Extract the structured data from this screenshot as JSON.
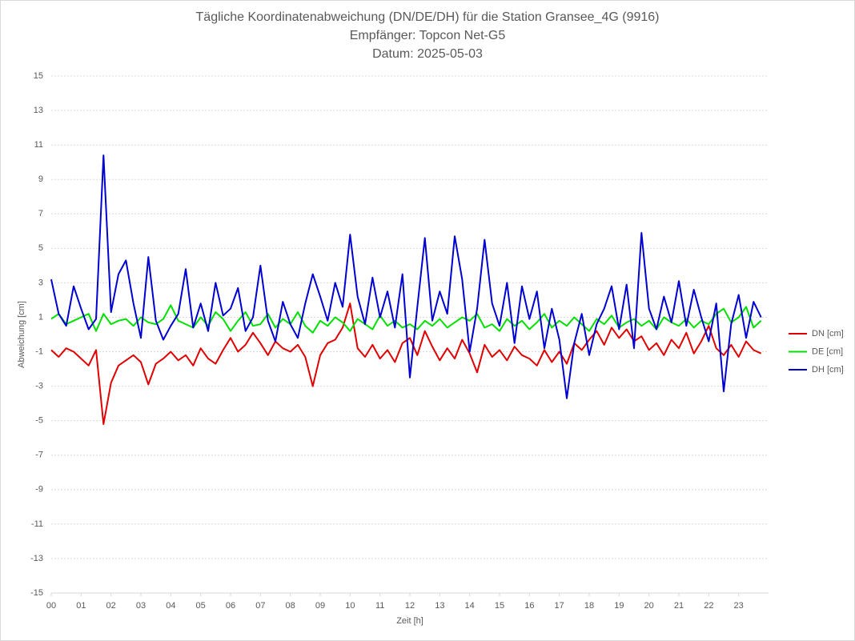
{
  "chart_data": {
    "type": "line",
    "title": "Tägliche Koordinatenabweichung (DN/DE/DH) für die Station Gransee_4G (9916)",
    "subtitle": "Empfänger: Topcon Net-G5",
    "date": "Datum: 2025-05-03",
    "x_label": "Zeit [h]",
    "y_label": "Abweichung [cm]",
    "xlim": [
      0,
      24
    ],
    "xticks": [
      {
        "value": 0,
        "label": "00"
      },
      {
        "value": 1,
        "label": "01"
      },
      {
        "value": 2,
        "label": "02"
      },
      {
        "value": 3,
        "label": "03"
      },
      {
        "value": 4,
        "label": "04"
      },
      {
        "value": 5,
        "label": "05"
      },
      {
        "value": 6,
        "label": "06"
      },
      {
        "value": 7,
        "label": "07"
      },
      {
        "value": 8,
        "label": "08"
      },
      {
        "value": 9,
        "label": "09"
      },
      10,
      11,
      12,
      13,
      14,
      15,
      16,
      17,
      18,
      19,
      20,
      21,
      22,
      23
    ],
    "ylim": [
      -15,
      15
    ],
    "yticks": [
      -15,
      -13,
      -11,
      -9,
      -7,
      -5,
      -3,
      -1,
      1,
      3,
      5,
      7,
      9,
      11,
      13,
      15
    ],
    "grid": true,
    "legend": "right",
    "x": [
      0,
      0.25,
      0.5,
      0.75,
      1,
      1.25,
      1.5,
      1.75,
      2,
      2.25,
      2.5,
      2.75,
      3,
      3.25,
      3.5,
      3.75,
      4,
      4.25,
      4.5,
      4.75,
      5,
      5.25,
      5.5,
      5.75,
      6,
      6.25,
      6.5,
      6.75,
      7,
      7.25,
      7.5,
      7.75,
      8,
      8.25,
      8.5,
      8.75,
      9,
      9.25,
      9.5,
      9.75,
      10,
      10.25,
      10.5,
      10.75,
      11,
      11.25,
      11.5,
      11.75,
      12,
      12.25,
      12.5,
      12.75,
      13,
      13.25,
      13.5,
      13.75,
      14,
      14.25,
      14.5,
      14.75,
      15,
      15.25,
      15.5,
      15.75,
      16,
      16.25,
      16.5,
      16.75,
      17,
      17.25,
      17.5,
      17.75,
      18,
      18.25,
      18.5,
      18.75,
      19,
      19.25,
      19.5,
      19.75,
      20,
      20.25,
      20.5,
      20.75,
      21,
      21.25,
      21.5,
      21.75,
      22,
      22.25,
      22.5,
      22.75,
      23,
      23.25,
      23.5,
      23.75
    ],
    "series": [
      {
        "name": "DN [cm]",
        "color": "#e00000",
        "values": [
          -0.9,
          -1.3,
          -0.8,
          -1.0,
          -1.4,
          -1.8,
          -0.9,
          -5.2,
          -2.8,
          -1.8,
          -1.5,
          -1.2,
          -1.6,
          -2.9,
          -1.7,
          -1.4,
          -1.0,
          -1.5,
          -1.2,
          -1.8,
          -0.8,
          -1.4,
          -1.7,
          -0.9,
          -0.2,
          -1.0,
          -0.6,
          0.1,
          -0.5,
          -1.2,
          -0.4,
          -0.8,
          -1.0,
          -0.6,
          -1.3,
          -3.0,
          -1.2,
          -0.5,
          -0.3,
          0.4,
          1.8,
          -0.8,
          -1.3,
          -0.6,
          -1.4,
          -0.9,
          -1.6,
          -0.5,
          -0.2,
          -1.2,
          0.2,
          -0.7,
          -1.5,
          -0.8,
          -1.4,
          -0.3,
          -1.1,
          -2.2,
          -0.6,
          -1.3,
          -0.9,
          -1.5,
          -0.7,
          -1.2,
          -1.4,
          -1.8,
          -0.9,
          -1.6,
          -1.0,
          -1.7,
          -0.5,
          -0.9,
          -0.3,
          0.2,
          -0.6,
          0.4,
          -0.2,
          0.3,
          -0.4,
          -0.1,
          -0.9,
          -0.5,
          -1.2,
          -0.3,
          -0.8,
          0.1,
          -1.1,
          -0.4,
          0.5,
          -0.8,
          -1.2,
          -0.6,
          -1.3,
          -0.4,
          -0.9,
          -1.1
        ]
      },
      {
        "name": "DE [cm]",
        "color": "#00e000",
        "values": [
          0.9,
          1.2,
          0.6,
          0.8,
          1.0,
          1.2,
          0.2,
          1.2,
          0.6,
          0.8,
          0.9,
          0.5,
          1.0,
          0.7,
          0.6,
          0.9,
          1.7,
          0.8,
          0.6,
          0.4,
          1.0,
          0.5,
          1.3,
          0.9,
          0.2,
          0.8,
          1.3,
          0.5,
          0.6,
          1.2,
          0.4,
          0.9,
          0.6,
          1.3,
          0.5,
          0.1,
          0.8,
          0.5,
          1.0,
          0.7,
          0.2,
          0.9,
          0.6,
          0.3,
          1.1,
          0.5,
          0.8,
          0.4,
          0.6,
          0.3,
          0.8,
          0.5,
          0.9,
          0.4,
          0.7,
          1.0,
          0.8,
          1.2,
          0.4,
          0.6,
          0.2,
          0.9,
          0.5,
          0.8,
          0.3,
          0.7,
          1.2,
          0.4,
          0.8,
          0.5,
          1.0,
          0.6,
          0.2,
          0.9,
          0.6,
          1.1,
          0.4,
          0.7,
          0.9,
          0.5,
          0.8,
          0.3,
          1.0,
          0.7,
          0.5,
          0.9,
          0.4,
          0.8,
          0.6,
          1.2,
          1.5,
          0.7,
          1.0,
          1.6,
          0.4,
          0.8
        ]
      },
      {
        "name": "DH [cm]",
        "color": "#0000d0",
        "values": [
          3.2,
          1.2,
          0.5,
          2.8,
          1.5,
          0.3,
          0.9,
          10.4,
          1.3,
          3.5,
          4.3,
          1.8,
          -0.2,
          4.5,
          0.8,
          -0.3,
          0.5,
          1.2,
          3.8,
          0.4,
          1.8,
          0.2,
          3.0,
          1.1,
          1.5,
          2.7,
          0.2,
          1.0,
          4.0,
          0.8,
          -0.4,
          1.9,
          0.6,
          -0.2,
          1.8,
          3.5,
          2.2,
          0.8,
          3.0,
          1.6,
          5.8,
          2.2,
          0.6,
          3.3,
          1.0,
          2.5,
          0.4,
          3.5,
          -2.5,
          1.6,
          5.6,
          0.8,
          2.5,
          1.2,
          5.7,
          3.2,
          -1.0,
          1.5,
          5.5,
          1.8,
          0.5,
          3.0,
          -0.5,
          2.8,
          0.9,
          2.5,
          -0.8,
          1.5,
          -0.3,
          -3.7,
          -0.5,
          1.2,
          -1.2,
          0.6,
          1.5,
          2.8,
          0.3,
          2.9,
          -0.8,
          5.9,
          1.5,
          0.3,
          2.2,
          0.7,
          3.1,
          0.5,
          2.6,
          1.0,
          -0.4,
          1.8,
          -3.3,
          0.6,
          2.3,
          -0.2,
          1.9,
          1.0
        ]
      }
    ]
  }
}
